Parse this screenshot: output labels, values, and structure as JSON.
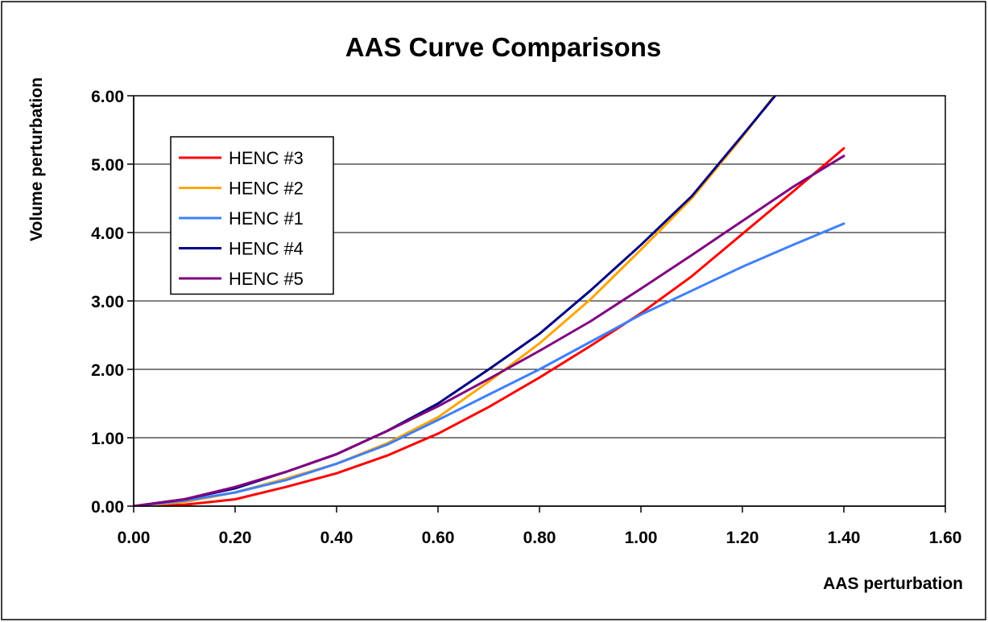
{
  "chart_data": {
    "type": "line",
    "title": "AAS Curve Comparisons",
    "xlabel": "AAS perturbation",
    "ylabel": "Volume perturbation",
    "xlim": [
      0,
      1.6
    ],
    "ylim": [
      0,
      6
    ],
    "xticks": [
      "0.00",
      "0.20",
      "0.40",
      "0.60",
      "0.80",
      "1.00",
      "1.20",
      "1.40",
      "1.60"
    ],
    "yticks": [
      "0.00",
      "1.00",
      "2.00",
      "3.00",
      "4.00",
      "5.00",
      "6.00"
    ],
    "grid": "horizontal major gridlines",
    "legend_position": "upper-left inside plot",
    "series": [
      {
        "name": "HENC #3",
        "color": "#ff0000",
        "points": [
          [
            0.0,
            0.0
          ],
          [
            0.1,
            0.02
          ],
          [
            0.2,
            0.1
          ],
          [
            0.3,
            0.28
          ],
          [
            0.4,
            0.48
          ],
          [
            0.5,
            0.74
          ],
          [
            0.6,
            1.06
          ],
          [
            0.7,
            1.45
          ],
          [
            0.8,
            1.88
          ],
          [
            0.9,
            2.34
          ],
          [
            1.0,
            2.82
          ],
          [
            1.1,
            3.36
          ],
          [
            1.2,
            3.98
          ],
          [
            1.3,
            4.6
          ],
          [
            1.4,
            5.23
          ]
        ]
      },
      {
        "name": "HENC #2",
        "color": "#ffa500",
        "points": [
          [
            0.0,
            0.0
          ],
          [
            0.1,
            0.06
          ],
          [
            0.2,
            0.2
          ],
          [
            0.3,
            0.4
          ],
          [
            0.4,
            0.62
          ],
          [
            0.5,
            0.92
          ],
          [
            0.6,
            1.3
          ],
          [
            0.7,
            1.82
          ],
          [
            0.8,
            2.38
          ],
          [
            0.9,
            3.02
          ],
          [
            1.0,
            3.75
          ],
          [
            1.1,
            4.5
          ],
          [
            1.2,
            5.4
          ],
          [
            1.265,
            6.02
          ]
        ]
      },
      {
        "name": "HENC #1",
        "color": "#3f7fff",
        "points": [
          [
            0.0,
            0.0
          ],
          [
            0.1,
            0.08
          ],
          [
            0.2,
            0.2
          ],
          [
            0.3,
            0.38
          ],
          [
            0.4,
            0.62
          ],
          [
            0.5,
            0.9
          ],
          [
            0.6,
            1.26
          ],
          [
            0.7,
            1.63
          ],
          [
            0.8,
            2.0
          ],
          [
            0.9,
            2.4
          ],
          [
            1.0,
            2.8
          ],
          [
            1.1,
            3.15
          ],
          [
            1.2,
            3.5
          ],
          [
            1.3,
            3.82
          ],
          [
            1.4,
            4.13
          ]
        ]
      },
      {
        "name": "HENC #4",
        "color": "#000080",
        "points": [
          [
            0.0,
            0.0
          ],
          [
            0.1,
            0.1
          ],
          [
            0.2,
            0.26
          ],
          [
            0.3,
            0.5
          ],
          [
            0.4,
            0.76
          ],
          [
            0.5,
            1.1
          ],
          [
            0.6,
            1.5
          ],
          [
            0.7,
            2.0
          ],
          [
            0.8,
            2.52
          ],
          [
            0.9,
            3.15
          ],
          [
            1.0,
            3.82
          ],
          [
            1.1,
            4.53
          ],
          [
            1.2,
            5.42
          ],
          [
            1.27,
            6.05
          ]
        ]
      },
      {
        "name": "HENC #5",
        "color": "#800080",
        "points": [
          [
            0.0,
            0.0
          ],
          [
            0.1,
            0.1
          ],
          [
            0.2,
            0.28
          ],
          [
            0.3,
            0.5
          ],
          [
            0.4,
            0.76
          ],
          [
            0.5,
            1.1
          ],
          [
            0.6,
            1.46
          ],
          [
            0.7,
            1.86
          ],
          [
            0.8,
            2.27
          ],
          [
            0.9,
            2.7
          ],
          [
            1.0,
            3.18
          ],
          [
            1.1,
            3.67
          ],
          [
            1.2,
            4.17
          ],
          [
            1.3,
            4.67
          ],
          [
            1.4,
            5.12
          ]
        ]
      }
    ]
  }
}
